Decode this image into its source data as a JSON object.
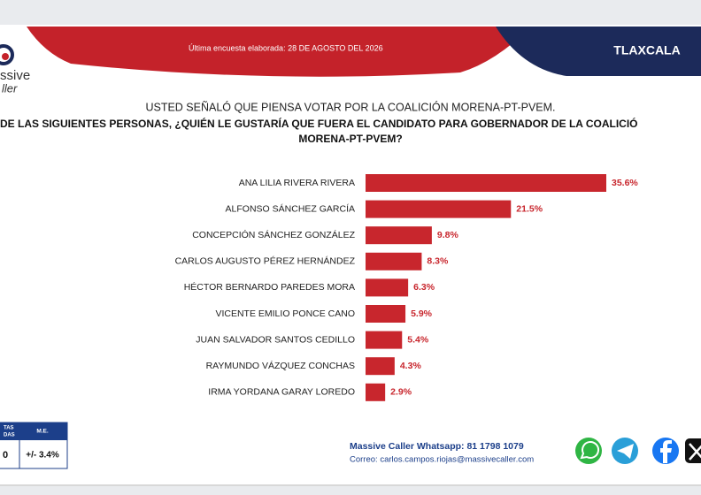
{
  "header": {
    "survey_date": "Última encuesta elaborada: 28 DE AGOSTO DEL 2026",
    "region": "TLAXCALA"
  },
  "logo": {
    "line1": "ssive",
    "line2": "ller"
  },
  "chart_data": {
    "type": "bar",
    "orientation": "horizontal",
    "title": "USTED SEÑALÓ QUE PIENSA VOTAR POR LA COALICIÓN MORENA-PT-PVEM.",
    "subtitle": [
      "DE LAS SIGUIENTES PERSONAS, ¿QUIÉN LE GUSTARÍA QUE FUERA EL CANDIDATO PARA GOBERNADOR DE LA COALICIÓ",
      "MORENA-PT-PVEM?"
    ],
    "categories": [
      "ANA LILIA RIVERA RIVERA",
      "ALFONSO SÁNCHEZ GARCÍA",
      "CONCEPCIÓN SÁNCHEZ GONZÁLEZ",
      "CARLOS AUGUSTO PÉREZ HERNÁNDEZ",
      "HÉCTOR BERNARDO PAREDES MORA",
      "VICENTE EMILIO PONCE CANO",
      "JUAN SALVADOR SANTOS CEDILLO",
      "RAYMUNDO VÁZQUEZ CONCHAS",
      "IRMA YORDANA GARAY LOREDO"
    ],
    "values": [
      35.6,
      21.5,
      9.8,
      8.3,
      6.3,
      5.9,
      5.4,
      4.3,
      2.9
    ],
    "value_labels": [
      "35.6%",
      "21.5%",
      "9.8%",
      "8.3%",
      "6.3%",
      "5.9%",
      "5.4%",
      "4.3%",
      "2.9%"
    ],
    "color": "#c8262d"
  },
  "stats": {
    "header_1": [
      "TAS",
      "DAS"
    ],
    "header_2": "M.E.",
    "value_1": "0",
    "value_2": "+/- 3.4%"
  },
  "footer": {
    "whatsapp": "Massive Caller Whatsapp: 81 1798 1079",
    "email": "Correo: carlos.campos.riojas@massivecaller.com"
  }
}
